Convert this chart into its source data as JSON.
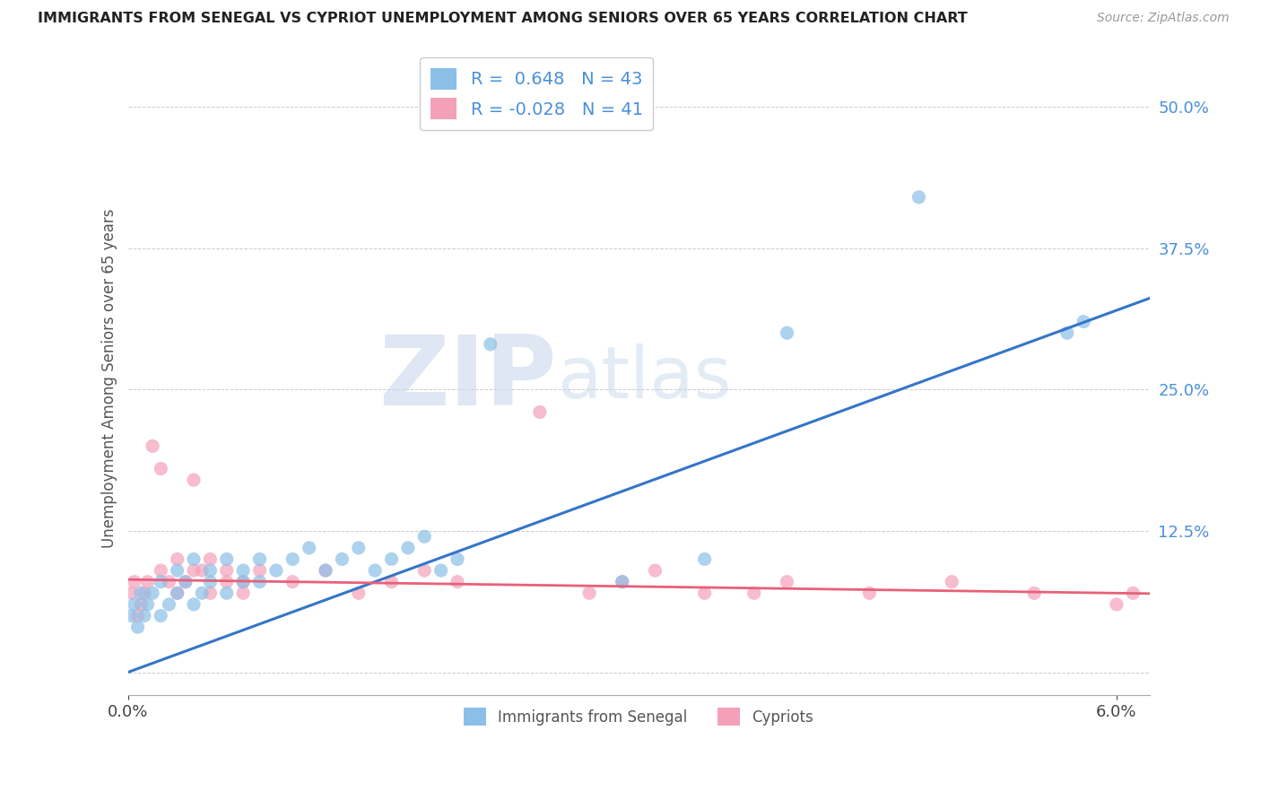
{
  "title": "IMMIGRANTS FROM SENEGAL VS CYPRIOT UNEMPLOYMENT AMONG SENIORS OVER 65 YEARS CORRELATION CHART",
  "source": "Source: ZipAtlas.com",
  "ylabel": "Unemployment Among Seniors over 65 years",
  "xlim": [
    0.0,
    0.062
  ],
  "ylim": [
    -0.02,
    0.54
  ],
  "legend_label1": "Immigrants from Senegal",
  "legend_label2": "Cypriots",
  "R1": "0.648",
  "N1": "43",
  "R2": "-0.028",
  "N2": "41",
  "color_blue": "#8BBFE8",
  "color_pink": "#F4A0B8",
  "line_color_blue": "#3575C8",
  "line_color_pink": "#E8607A",
  "background_color": "#FFFFFF",
  "grid_color": "#CCCCCC",
  "blue_x": [
    0.0002,
    0.0004,
    0.0006,
    0.0008,
    0.001,
    0.0012,
    0.0015,
    0.002,
    0.002,
    0.0025,
    0.003,
    0.003,
    0.0035,
    0.004,
    0.004,
    0.0045,
    0.005,
    0.005,
    0.006,
    0.006,
    0.007,
    0.007,
    0.008,
    0.008,
    0.009,
    0.01,
    0.011,
    0.012,
    0.013,
    0.014,
    0.015,
    0.016,
    0.017,
    0.018,
    0.019,
    0.02,
    0.022,
    0.03,
    0.035,
    0.04,
    0.048,
    0.057,
    0.058
  ],
  "blue_y": [
    0.05,
    0.06,
    0.04,
    0.07,
    0.05,
    0.06,
    0.07,
    0.05,
    0.08,
    0.06,
    0.07,
    0.09,
    0.08,
    0.06,
    0.1,
    0.07,
    0.08,
    0.09,
    0.07,
    0.1,
    0.08,
    0.09,
    0.1,
    0.08,
    0.09,
    0.1,
    0.11,
    0.09,
    0.1,
    0.11,
    0.09,
    0.1,
    0.11,
    0.12,
    0.09,
    0.1,
    0.29,
    0.08,
    0.1,
    0.3,
    0.42,
    0.3,
    0.31
  ],
  "pink_x": [
    0.0002,
    0.0004,
    0.0006,
    0.0008,
    0.001,
    0.0012,
    0.0015,
    0.002,
    0.002,
    0.0025,
    0.003,
    0.003,
    0.0035,
    0.004,
    0.004,
    0.0045,
    0.005,
    0.005,
    0.006,
    0.006,
    0.007,
    0.007,
    0.008,
    0.01,
    0.012,
    0.014,
    0.016,
    0.018,
    0.02,
    0.025,
    0.028,
    0.03,
    0.032,
    0.035,
    0.038,
    0.04,
    0.045,
    0.05,
    0.055,
    0.06,
    0.061
  ],
  "pink_y": [
    0.07,
    0.08,
    0.05,
    0.06,
    0.07,
    0.08,
    0.2,
    0.18,
    0.09,
    0.08,
    0.07,
    0.1,
    0.08,
    0.09,
    0.17,
    0.09,
    0.07,
    0.1,
    0.08,
    0.09,
    0.07,
    0.08,
    0.09,
    0.08,
    0.09,
    0.07,
    0.08,
    0.09,
    0.08,
    0.23,
    0.07,
    0.08,
    0.09,
    0.07,
    0.07,
    0.08,
    0.07,
    0.08,
    0.07,
    0.06,
    0.07
  ]
}
